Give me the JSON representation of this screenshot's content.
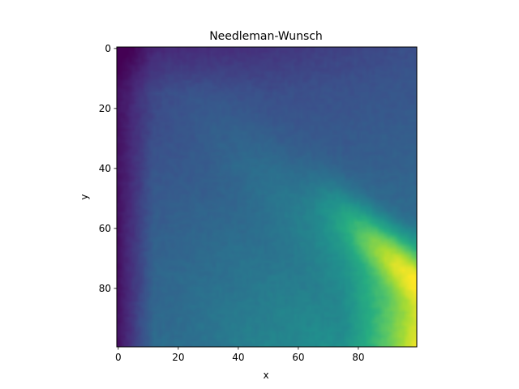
{
  "chart_data": {
    "type": "heatmap",
    "title": "Needleman-Wunsch",
    "xlabel": "x",
    "ylabel": "y",
    "xlim": [
      -0.5,
      99.5
    ],
    "ylim": [
      99.5,
      -0.5
    ],
    "y_axis_inverted": true,
    "xticks": [
      "0",
      "20",
      "40",
      "60",
      "80"
    ],
    "yticks": [
      "0",
      "20",
      "40",
      "60",
      "80"
    ],
    "xtick_values": [
      0,
      20,
      40,
      60,
      80
    ],
    "ytick_values": [
      0,
      20,
      40,
      60,
      80
    ],
    "grid": false,
    "colormap": "viridis",
    "shape": [
      100,
      100
    ],
    "value_range": [
      0,
      1
    ],
    "colors": {
      "low": "#440154",
      "mid": "#21918c",
      "high": "#fde725"
    }
  }
}
